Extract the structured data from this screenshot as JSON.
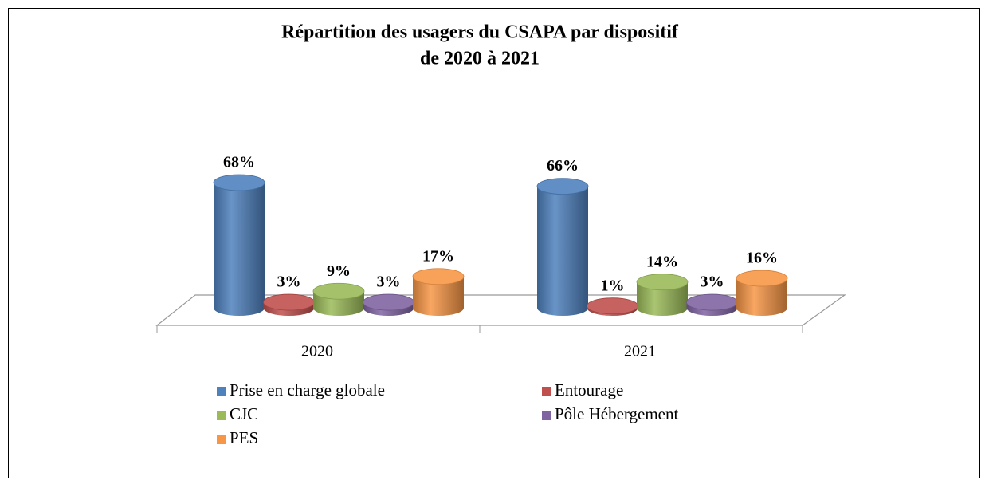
{
  "chart_data": {
    "type": "bar3d",
    "title": "Répartition des usagers du CSAPA par dispositif",
    "subtitle": "de 2020 à 2021",
    "categories": [
      "2020",
      "2021"
    ],
    "series": [
      {
        "name": "Prise en charge globale",
        "color": "#4f81bd",
        "values": [
          68,
          66
        ],
        "value_labels": [
          "68%",
          "66%"
        ]
      },
      {
        "name": "Entourage",
        "color": "#c0504d",
        "values": [
          3,
          1
        ],
        "value_labels": [
          "3%",
          "1%"
        ]
      },
      {
        "name": "CJC",
        "color": "#9bbb59",
        "values": [
          9,
          14
        ],
        "value_labels": [
          "9%",
          "14%"
        ]
      },
      {
        "name": "Pôle Hébergement",
        "color": "#8064a2",
        "values": [
          3,
          3
        ],
        "value_labels": [
          "3%",
          "3%"
        ]
      },
      {
        "name": "PES",
        "color": "#f79646",
        "values": [
          17,
          16
        ],
        "value_labels": [
          "17%",
          "16%"
        ]
      }
    ]
  }
}
